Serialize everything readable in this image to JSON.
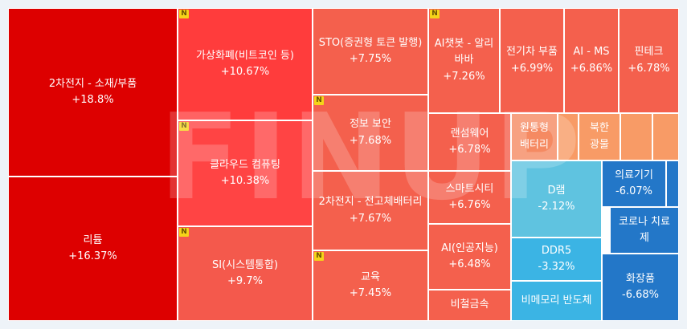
{
  "chart_data": {
    "type": "treemap",
    "watermark": "FINUP",
    "badge_label": "N",
    "items": [
      {
        "name": "2차전지 - 소재/부품",
        "change": "+18.8%",
        "value": 18.8,
        "color": "#dd0000",
        "new": false
      },
      {
        "name": "리튬",
        "change": "+16.37%",
        "value": 16.37,
        "color": "#dd0000",
        "new": false
      },
      {
        "name": "가상화폐(비트코인 등)",
        "change": "+10.67%",
        "value": 10.67,
        "color": "#ff3c3c",
        "new": true
      },
      {
        "name": "클라우드 컴퓨팅",
        "change": "+10.38%",
        "value": 10.38,
        "color": "#ff4444",
        "new": true
      },
      {
        "name": "SI(시스템통합)",
        "change": "+9.7%",
        "value": 9.7,
        "color": "#f4594c",
        "new": true
      },
      {
        "name": "STO(증권형 토큰 발행)",
        "change": "+7.75%",
        "value": 7.75,
        "color": "#f4604d",
        "new": false
      },
      {
        "name": "정보 보안",
        "change": "+7.68%",
        "value": 7.68,
        "color": "#f4604d",
        "new": true
      },
      {
        "name": "2차전지 - 전고체배터리",
        "change": "+7.67%",
        "value": 7.67,
        "color": "#f4604d",
        "new": false
      },
      {
        "name": "교육",
        "change": "+7.45%",
        "value": 7.45,
        "color": "#f4604d",
        "new": true
      },
      {
        "name": "AI챗봇 - 알리\n바바",
        "change": "+7.26%",
        "value": 7.26,
        "color": "#f4604d",
        "new": true
      },
      {
        "name": "랜섬웨어",
        "change": "+6.78%",
        "value": 6.78,
        "color": "#f4604d",
        "new": false
      },
      {
        "name": "스마트시티",
        "change": "+6.76%",
        "value": 6.76,
        "color": "#f4604d",
        "new": false
      },
      {
        "name": "AI(인공지능)",
        "change": "+6.48%",
        "value": 6.48,
        "color": "#f4604d",
        "new": false
      },
      {
        "name": "비철금속",
        "change": "",
        "value": null,
        "color": "#f4604d",
        "new": false
      },
      {
        "name": "전기차 부품",
        "change": "+6.99%",
        "value": 6.99,
        "color": "#f4604d",
        "new": false
      },
      {
        "name": "AI - MS",
        "change": "+6.86%",
        "value": 6.86,
        "color": "#f4604d",
        "new": false
      },
      {
        "name": "핀테크",
        "change": "+6.78%",
        "value": 6.78,
        "color": "#f4604d",
        "new": false
      },
      {
        "name": "원통형\n배터리",
        "change": "",
        "value": null,
        "color": "#f58a62",
        "new": false
      },
      {
        "name": "",
        "change": "",
        "value": null,
        "color": "#f89b66",
        "new": false
      },
      {
        "name": "북한\n광물",
        "change": "",
        "value": null,
        "color": "#f89b66",
        "new": false
      },
      {
        "name": "",
        "change": "",
        "value": null,
        "color": "#f89b66",
        "new": false
      },
      {
        "name": "",
        "change": "",
        "value": null,
        "color": "#f89b66",
        "new": false
      },
      {
        "name": "D램",
        "change": "-2.12%",
        "value": -2.12,
        "color": "#5fc3e0",
        "new": false
      },
      {
        "name": "DDR5",
        "change": "-3.32%",
        "value": -3.32,
        "color": "#3bb4e4",
        "new": false
      },
      {
        "name": "비메모리 반도체",
        "change": "",
        "value": null,
        "color": "#3bb4e4",
        "new": false
      },
      {
        "name": "의료기기",
        "change": "-6.07%",
        "value": -6.07,
        "color": "#2377c8",
        "new": false
      },
      {
        "name": "",
        "change": "",
        "value": null,
        "color": "#2377c8",
        "new": false
      },
      {
        "name": "",
        "change": "",
        "value": null,
        "color": "#ffffff",
        "new": false
      },
      {
        "name": "코로나 치료\n제",
        "change": "",
        "value": null,
        "color": "#2377c8",
        "new": false
      },
      {
        "name": "화장품",
        "change": "-6.68%",
        "value": -6.68,
        "color": "#2377c8",
        "new": false
      }
    ]
  }
}
